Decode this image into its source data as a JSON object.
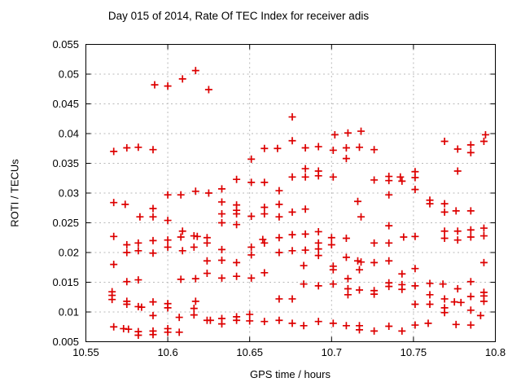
{
  "chart_data": {
    "type": "scatter",
    "title": "Day 015 of 2014, Rate Of TEC Index for receiver adis",
    "xlabel": "GPS time / hours",
    "ylabel": "ROTI / TECUs",
    "xlim": [
      10.55,
      10.8
    ],
    "ylim": [
      0.005,
      0.055
    ],
    "xticks": [
      10.55,
      10.6,
      10.65,
      10.7,
      10.75,
      10.8
    ],
    "yticks": [
      0.005,
      0.01,
      0.015,
      0.02,
      0.025,
      0.03,
      0.035,
      0.04,
      0.045,
      0.05,
      0.055
    ],
    "grid": true,
    "legend_position": "none",
    "marker": {
      "shape": "plus",
      "size": 9,
      "color": "#dd0000"
    },
    "axis_color": "#000000",
    "grid_color": "#b9b9b9",
    "points": [
      [
        10.617,
        0.0506
      ],
      [
        10.609,
        0.0492
      ],
      [
        10.592,
        0.0482
      ],
      [
        10.6,
        0.048
      ],
      [
        10.625,
        0.0474
      ],
      [
        10.676,
        0.0428
      ],
      [
        10.718,
        0.0404
      ],
      [
        10.71,
        0.0401
      ],
      [
        10.702,
        0.0398
      ],
      [
        10.794,
        0.0398
      ],
      [
        10.676,
        0.0388
      ],
      [
        10.769,
        0.0387
      ],
      [
        10.793,
        0.0387
      ],
      [
        10.785,
        0.0381
      ],
      [
        10.582,
        0.0377
      ],
      [
        10.717,
        0.0377
      ],
      [
        10.575,
        0.0376
      ],
      [
        10.684,
        0.0376
      ],
      [
        10.709,
        0.0376
      ],
      [
        10.659,
        0.0375
      ],
      [
        10.667,
        0.0375
      ],
      [
        10.777,
        0.0374
      ],
      [
        10.591,
        0.0373
      ],
      [
        10.726,
        0.0373
      ],
      [
        10.692,
        0.0378
      ],
      [
        10.701,
        0.0372
      ],
      [
        10.567,
        0.037
      ],
      [
        10.785,
        0.0368
      ],
      [
        10.651,
        0.0357
      ],
      [
        10.709,
        0.0358
      ],
      [
        10.684,
        0.0341
      ],
      [
        10.692,
        0.0337
      ],
      [
        10.777,
        0.0337
      ],
      [
        10.751,
        0.0336
      ],
      [
        10.692,
        0.0329
      ],
      [
        10.735,
        0.0328
      ],
      [
        10.676,
        0.0327
      ],
      [
        10.684,
        0.0327
      ],
      [
        10.701,
        0.0327
      ],
      [
        10.742,
        0.0327
      ],
      [
        10.751,
        0.0326
      ],
      [
        10.642,
        0.0323
      ],
      [
        10.726,
        0.0322
      ],
      [
        10.735,
        0.0321
      ],
      [
        10.743,
        0.032
      ],
      [
        10.651,
        0.0318
      ],
      [
        10.659,
        0.0318
      ],
      [
        10.633,
        0.0307
      ],
      [
        10.751,
        0.0306
      ],
      [
        10.668,
        0.0304
      ],
      [
        10.617,
        0.0303
      ],
      [
        10.625,
        0.03
      ],
      [
        10.6,
        0.0297
      ],
      [
        10.608,
        0.0297
      ],
      [
        10.735,
        0.0297
      ],
      [
        10.76,
        0.0288
      ],
      [
        10.716,
        0.0286
      ],
      [
        10.633,
        0.0285
      ],
      [
        10.567,
        0.0284
      ],
      [
        10.76,
        0.0282
      ],
      [
        10.769,
        0.0282
      ],
      [
        10.574,
        0.0281
      ],
      [
        10.642,
        0.028
      ],
      [
        10.668,
        0.0281
      ],
      [
        10.659,
        0.0276
      ],
      [
        10.591,
        0.0274
      ],
      [
        10.684,
        0.0273
      ],
      [
        10.642,
        0.0271
      ],
      [
        10.776,
        0.027
      ],
      [
        10.785,
        0.027
      ],
      [
        10.769,
        0.0268
      ],
      [
        10.676,
        0.0268
      ],
      [
        10.633,
        0.0265
      ],
      [
        10.642,
        0.0265
      ],
      [
        10.659,
        0.0265
      ],
      [
        10.651,
        0.0261
      ],
      [
        10.583,
        0.026
      ],
      [
        10.591,
        0.026
      ],
      [
        10.6,
        0.0254
      ],
      [
        10.668,
        0.026
      ],
      [
        10.718,
        0.026
      ],
      [
        10.633,
        0.025
      ],
      [
        10.642,
        0.0247
      ],
      [
        10.735,
        0.0245
      ],
      [
        10.793,
        0.0241
      ],
      [
        10.785,
        0.0238
      ],
      [
        10.609,
        0.0236
      ],
      [
        10.769,
        0.0236
      ],
      [
        10.777,
        0.0236
      ],
      [
        10.692,
        0.0235
      ],
      [
        10.676,
        0.023
      ],
      [
        10.684,
        0.0231
      ],
      [
        10.793,
        0.0228
      ],
      [
        10.616,
        0.0228
      ],
      [
        10.618,
        0.0227
      ],
      [
        10.567,
        0.0227
      ],
      [
        10.751,
        0.0227
      ],
      [
        10.608,
        0.0226
      ],
      [
        10.744,
        0.0226
      ],
      [
        10.785,
        0.0226
      ],
      [
        10.624,
        0.0225
      ],
      [
        10.668,
        0.0225
      ],
      [
        10.7,
        0.0225
      ],
      [
        10.709,
        0.0224
      ],
      [
        10.769,
        0.0224
      ],
      [
        10.658,
        0.0222
      ],
      [
        10.6,
        0.0221
      ],
      [
        10.591,
        0.022
      ],
      [
        10.777,
        0.0221
      ],
      [
        10.582,
        0.0216
      ],
      [
        10.624,
        0.0216
      ],
      [
        10.659,
        0.0216
      ],
      [
        10.692,
        0.0216
      ],
      [
        10.726,
        0.0216
      ],
      [
        10.735,
        0.0216
      ],
      [
        10.575,
        0.0213
      ],
      [
        10.7,
        0.0213
      ],
      [
        10.651,
        0.0209
      ],
      [
        10.6,
        0.0209
      ],
      [
        10.616,
        0.0209
      ],
      [
        10.692,
        0.0206
      ],
      [
        10.633,
        0.0205
      ],
      [
        10.582,
        0.0203
      ],
      [
        10.609,
        0.0203
      ],
      [
        10.676,
        0.0203
      ],
      [
        10.684,
        0.0204
      ],
      [
        10.575,
        0.02
      ],
      [
        10.668,
        0.02
      ],
      [
        10.591,
        0.0199
      ],
      [
        10.651,
        0.0196
      ],
      [
        10.692,
        0.0195
      ],
      [
        10.709,
        0.0192
      ],
      [
        10.633,
        0.0187
      ],
      [
        10.624,
        0.0186
      ],
      [
        10.716,
        0.0186
      ],
      [
        10.735,
        0.0186
      ],
      [
        10.718,
        0.0184
      ],
      [
        10.642,
        0.0183
      ],
      [
        10.726,
        0.0183
      ],
      [
        10.793,
        0.0183
      ],
      [
        10.567,
        0.018
      ],
      [
        10.683,
        0.0178
      ],
      [
        10.701,
        0.0177
      ],
      [
        10.751,
        0.0173
      ],
      [
        10.701,
        0.0171
      ],
      [
        10.717,
        0.0171
      ],
      [
        10.659,
        0.0166
      ],
      [
        10.624,
        0.0165
      ],
      [
        10.743,
        0.0164
      ],
      [
        10.642,
        0.016
      ],
      [
        10.633,
        0.0157
      ],
      [
        10.651,
        0.0157
      ],
      [
        10.617,
        0.0156
      ],
      [
        10.71,
        0.0156
      ],
      [
        10.608,
        0.0155
      ],
      [
        10.582,
        0.0154
      ],
      [
        10.575,
        0.0151
      ],
      [
        10.785,
        0.0151
      ],
      [
        10.735,
        0.0149
      ],
      [
        10.76,
        0.0148
      ],
      [
        10.683,
        0.0147
      ],
      [
        10.701,
        0.0147
      ],
      [
        10.768,
        0.0147
      ],
      [
        10.743,
        0.0146
      ],
      [
        10.692,
        0.0144
      ],
      [
        10.751,
        0.0144
      ],
      [
        10.735,
        0.0143
      ],
      [
        10.71,
        0.0139
      ],
      [
        10.777,
        0.0139
      ],
      [
        10.743,
        0.0138
      ],
      [
        10.717,
        0.0137
      ],
      [
        10.726,
        0.0136
      ],
      [
        10.566,
        0.0134
      ],
      [
        10.793,
        0.0133
      ],
      [
        10.726,
        0.013
      ],
      [
        10.76,
        0.0129
      ],
      [
        10.71,
        0.0129
      ],
      [
        10.566,
        0.0128
      ],
      [
        10.793,
        0.0127
      ],
      [
        10.785,
        0.0126
      ],
      [
        10.668,
        0.0122
      ],
      [
        10.676,
        0.0122
      ],
      [
        10.769,
        0.0122
      ],
      [
        10.566,
        0.0121
      ],
      [
        10.575,
        0.0118
      ],
      [
        10.617,
        0.0118
      ],
      [
        10.793,
        0.0118
      ],
      [
        10.591,
        0.0117
      ],
      [
        10.775,
        0.0117
      ],
      [
        10.779,
        0.0116
      ],
      [
        10.6,
        0.0114
      ],
      [
        10.575,
        0.0113
      ],
      [
        10.751,
        0.0113
      ],
      [
        10.76,
        0.0113
      ],
      [
        10.582,
        0.0109
      ],
      [
        10.584,
        0.0108
      ],
      [
        10.6,
        0.0107
      ],
      [
        10.616,
        0.0106
      ],
      [
        10.769,
        0.0107
      ],
      [
        10.785,
        0.0103
      ],
      [
        10.769,
        0.0099
      ],
      [
        10.65,
        0.0096
      ],
      [
        10.616,
        0.0095
      ],
      [
        10.591,
        0.0094
      ],
      [
        10.791,
        0.0094
      ],
      [
        10.642,
        0.0092
      ],
      [
        10.607,
        0.0091
      ],
      [
        10.633,
        0.0089
      ],
      [
        10.624,
        0.0086
      ],
      [
        10.626,
        0.0086
      ],
      [
        10.642,
        0.0086
      ],
      [
        10.668,
        0.0086
      ],
      [
        10.65,
        0.0085
      ],
      [
        10.659,
        0.0084
      ],
      [
        10.692,
        0.0084
      ],
      [
        10.676,
        0.0081
      ],
      [
        10.701,
        0.0081
      ],
      [
        10.759,
        0.0081
      ],
      [
        10.633,
        0.008
      ],
      [
        10.776,
        0.0079
      ],
      [
        10.751,
        0.0078
      ],
      [
        10.717,
        0.0077
      ],
      [
        10.683,
        0.0077
      ],
      [
        10.709,
        0.0077
      ],
      [
        10.785,
        0.0078
      ],
      [
        10.735,
        0.0076
      ],
      [
        10.567,
        0.0075
      ],
      [
        10.573,
        0.0072
      ],
      [
        10.576,
        0.0071
      ],
      [
        10.6,
        0.0072
      ],
      [
        10.582,
        0.0067
      ],
      [
        10.591,
        0.0068
      ],
      [
        10.6,
        0.0066
      ],
      [
        10.607,
        0.0066
      ],
      [
        10.726,
        0.0068
      ],
      [
        10.743,
        0.0068
      ],
      [
        10.717,
        0.007
      ],
      [
        10.582,
        0.0061
      ],
      [
        10.591,
        0.0062
      ]
    ]
  }
}
